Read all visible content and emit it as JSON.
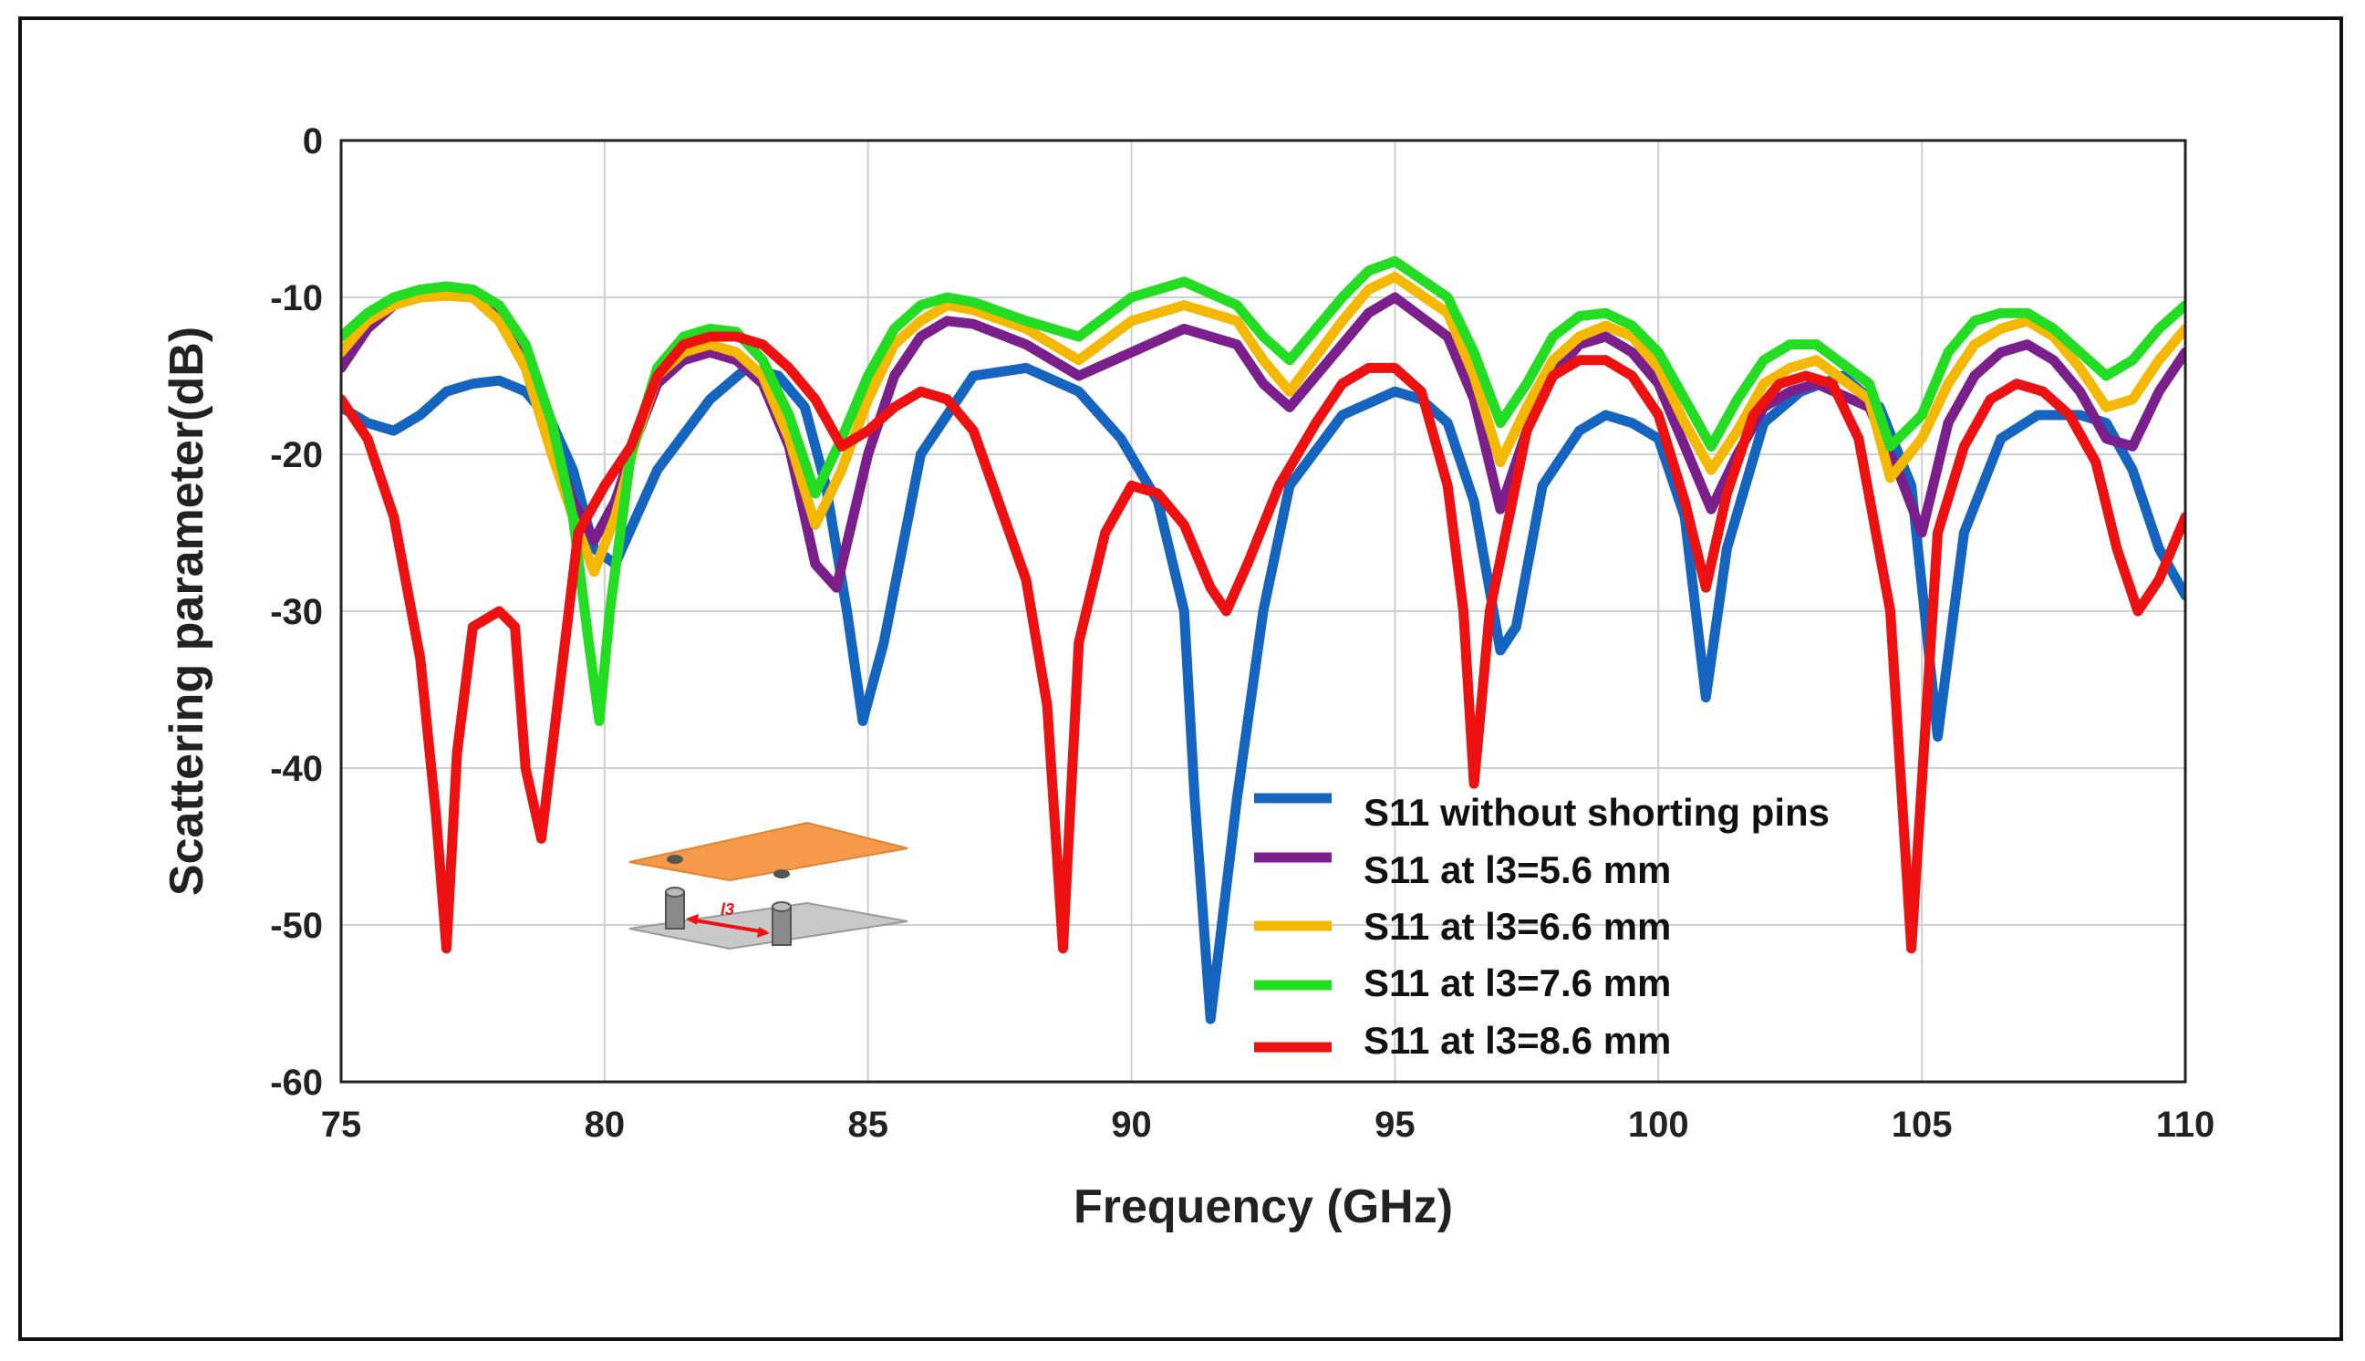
{
  "chart_data": {
    "type": "line",
    "title": "",
    "xlabel": "Frequency (GHz)",
    "ylabel": "Scattering parameter(dB)",
    "xlim": [
      75,
      110
    ],
    "ylim": [
      -60,
      0
    ],
    "xticks": [
      75,
      80,
      85,
      90,
      95,
      100,
      105,
      110
    ],
    "yticks": [
      0,
      -10,
      -20,
      -30,
      -40,
      -50,
      -60
    ],
    "xtick_labels": [
      "75",
      "80",
      "85",
      "90",
      "95",
      "100",
      "105",
      "110"
    ],
    "ytick_labels": [
      "0",
      "-10",
      "-20",
      "-30",
      "-40",
      "-50",
      "-60"
    ],
    "grid": true,
    "legend_position": "lower-right",
    "series": [
      {
        "name": "S11 without shorting pins",
        "color": "#1565c0",
        "x": [
          75,
          75.5,
          76,
          76.5,
          77,
          77.5,
          78,
          78.5,
          79,
          79.4,
          79.8,
          80.2,
          81,
          82,
          82.7,
          83.3,
          83.8,
          84.2,
          84.6,
          84.9,
          85.3,
          86,
          87,
          88,
          89,
          89.8,
          90.5,
          91,
          91.2,
          91.5,
          92,
          92.5,
          93,
          94,
          95,
          95.5,
          96,
          96.5,
          97,
          97.3,
          97.8,
          98.5,
          99,
          99.5,
          100,
          100.5,
          100.9,
          101.3,
          102,
          102.7,
          103.5,
          104.2,
          104.8,
          105.3,
          105.8,
          106.5,
          107.2,
          108,
          108.5,
          109,
          109.5,
          110
        ],
        "values": [
          -17,
          -18,
          -18.5,
          -17.5,
          -16,
          -15.5,
          -15.3,
          -16,
          -18,
          -21,
          -26,
          -27,
          -21,
          -16.5,
          -14.5,
          -15,
          -17,
          -22,
          -30,
          -37,
          -32,
          -20,
          -15,
          -14.5,
          -16,
          -19,
          -23,
          -30,
          -42,
          -56,
          -42,
          -30,
          -22,
          -17.5,
          -16,
          -16.5,
          -18,
          -23,
          -32.5,
          -31,
          -22,
          -18.5,
          -17.5,
          -18,
          -19,
          -24,
          -35.5,
          -26,
          -18,
          -16,
          -15,
          -17,
          -22,
          -38,
          -25,
          -19,
          -17.5,
          -17.5,
          -18,
          -21,
          -26,
          -29
        ]
      },
      {
        "name": "S11 at l3=5.6 mm",
        "color": "#7b1f8c",
        "x": [
          75,
          75.5,
          76,
          76.5,
          77,
          77.5,
          78,
          78.5,
          79,
          79.4,
          79.8,
          80.2,
          80.6,
          81,
          81.5,
          82,
          82.5,
          83,
          83.5,
          84,
          84.4,
          85,
          85.5,
          86,
          86.5,
          87,
          88,
          89,
          90,
          91,
          92,
          92.5,
          93,
          94,
          94.5,
          95,
          96,
          96.5,
          97,
          97.5,
          98,
          98.5,
          99,
          99.5,
          100,
          100.5,
          101,
          101.5,
          102,
          102.5,
          103,
          104,
          104.6,
          105,
          105.5,
          106,
          106.5,
          107,
          107.5,
          108,
          108.5,
          109,
          109.5,
          110
        ],
        "values": [
          -14.5,
          -12,
          -10.5,
          -9.8,
          -9.6,
          -9.8,
          -11,
          -14,
          -19,
          -23,
          -25.5,
          -23,
          -19,
          -15.5,
          -14,
          -13.5,
          -14,
          -15.5,
          -19.5,
          -27,
          -28.5,
          -20,
          -15,
          -12.5,
          -11.5,
          -11.7,
          -13,
          -15,
          -13.5,
          -12,
          -13,
          -15.5,
          -17,
          -13,
          -11,
          -10,
          -12.5,
          -16.5,
          -23.5,
          -18.5,
          -15,
          -13,
          -12.5,
          -13.5,
          -15.5,
          -19.5,
          -23.5,
          -20,
          -17,
          -16,
          -15.5,
          -17,
          -21.5,
          -25,
          -18,
          -15,
          -13.5,
          -13,
          -14,
          -16,
          -19,
          -19.5,
          -16,
          -13.5
        ]
      },
      {
        "name": "S11 at l3=6.6 mm",
        "color": "#f5b800",
        "x": [
          75,
          75.5,
          76,
          76.5,
          77,
          77.5,
          78,
          78.5,
          79,
          79.4,
          79.8,
          80.2,
          80.6,
          81,
          81.5,
          82,
          82.5,
          83,
          83.5,
          84,
          84.5,
          85,
          85.5,
          86,
          86.5,
          87,
          88,
          89,
          90,
          91,
          92,
          92.5,
          93,
          94,
          94.5,
          95,
          96,
          96.5,
          97,
          97.5,
          98,
          98.5,
          99,
          99.5,
          100,
          100.5,
          101,
          101.5,
          102,
          102.5,
          103,
          104,
          104.4,
          105,
          105.5,
          106,
          106.5,
          107,
          107.5,
          108,
          108.5,
          109,
          109.5,
          110
        ],
        "values": [
          -13.5,
          -11.5,
          -10.5,
          -10,
          -9.9,
          -10,
          -11.5,
          -14.5,
          -20,
          -24,
          -27.5,
          -24,
          -19,
          -15,
          -13.5,
          -13,
          -13.5,
          -15,
          -19,
          -24.5,
          -21,
          -16.5,
          -13,
          -11.5,
          -10.5,
          -10.8,
          -12,
          -14,
          -11.5,
          -10.5,
          -11.5,
          -14,
          -16,
          -11.5,
          -9.5,
          -8.7,
          -11,
          -15,
          -20.5,
          -17,
          -14,
          -12.5,
          -11.8,
          -12.5,
          -14.5,
          -18,
          -21,
          -18.5,
          -15.5,
          -14.5,
          -14,
          -16.5,
          -21.5,
          -19,
          -15.5,
          -13,
          -12,
          -11.5,
          -12.5,
          -14.5,
          -17,
          -16.5,
          -14,
          -12
        ]
      },
      {
        "name": "S11 at l3=7.6 mm",
        "color": "#22dd22",
        "x": [
          75,
          75.5,
          76,
          76.5,
          77,
          77.5,
          78,
          78.5,
          79,
          79.4,
          79.7,
          79.9,
          80.1,
          80.5,
          81,
          81.5,
          82,
          82.5,
          83,
          83.5,
          84,
          84.5,
          85,
          85.5,
          86,
          86.5,
          87,
          88,
          89,
          90,
          91,
          92,
          92.5,
          93,
          94,
          94.5,
          95,
          96,
          96.5,
          97,
          97.5,
          98,
          98.5,
          99,
          99.5,
          100,
          100.5,
          101,
          101.5,
          102,
          102.5,
          103,
          104,
          104.4,
          105,
          105.5,
          106,
          106.5,
          107,
          107.5,
          108,
          108.5,
          109,
          109.5,
          110
        ],
        "values": [
          -12.5,
          -11,
          -10,
          -9.5,
          -9.3,
          -9.5,
          -10.5,
          -13,
          -18,
          -24,
          -32,
          -37,
          -30,
          -20,
          -14.5,
          -12.5,
          -12,
          -12.2,
          -14,
          -17.5,
          -22.5,
          -19,
          -15,
          -12,
          -10.5,
          -10,
          -10.3,
          -11.5,
          -12.5,
          -10,
          -9,
          -10.5,
          -12.5,
          -14,
          -10,
          -8.3,
          -7.7,
          -10,
          -13.5,
          -18,
          -15.5,
          -12.5,
          -11.2,
          -11,
          -11.8,
          -13.5,
          -16.5,
          -19.5,
          -16.5,
          -14,
          -13,
          -13,
          -15.5,
          -19.5,
          -17.5,
          -13.5,
          -11.5,
          -11,
          -11,
          -12,
          -13.5,
          -15,
          -14,
          -12,
          -10.5
        ]
      },
      {
        "name": "S11 at l3=8.6 mm",
        "color": "#ee1111",
        "x": [
          75,
          75.5,
          76,
          76.5,
          76.8,
          77,
          77.2,
          77.5,
          78,
          78.3,
          78.5,
          78.8,
          79.5,
          80,
          80.5,
          81,
          81.5,
          82,
          82.5,
          83,
          83.5,
          84,
          84.5,
          85,
          85.5,
          86,
          86.5,
          87,
          88,
          88.4,
          88.7,
          89,
          89.5,
          90,
          90.5,
          91,
          91.5,
          91.8,
          92.2,
          92.8,
          93.5,
          94,
          94.5,
          95,
          95.5,
          96,
          96.3,
          96.5,
          96.8,
          97.5,
          98,
          98.5,
          99,
          99.5,
          100,
          100.5,
          100.9,
          101.3,
          101.8,
          102.3,
          102.8,
          103.3,
          103.8,
          104.4,
          104.8,
          105.3,
          105.8,
          106.3,
          106.8,
          107.3,
          107.8,
          108.3,
          108.7,
          109.1,
          109.5,
          110
        ],
        "values": [
          -16.5,
          -19,
          -24,
          -33,
          -43,
          -51.5,
          -39,
          -31,
          -30,
          -31,
          -40,
          -44.5,
          -25,
          -22,
          -19.5,
          -15,
          -13,
          -12.5,
          -12.5,
          -13,
          -14.5,
          -16.5,
          -19.5,
          -18.5,
          -17,
          -16,
          -16.5,
          -18.5,
          -28,
          -36,
          -51.5,
          -32,
          -25,
          -22,
          -22.5,
          -24.5,
          -28.5,
          -30,
          -27,
          -22,
          -18,
          -15.5,
          -14.5,
          -14.5,
          -16,
          -22,
          -30,
          -41,
          -30,
          -18.5,
          -15,
          -14,
          -14,
          -15,
          -17.5,
          -23,
          -28.5,
          -22.5,
          -17.5,
          -15.5,
          -15,
          -15.5,
          -19,
          -30,
          -51.5,
          -25,
          -19.5,
          -16.5,
          -15.5,
          -16,
          -17.5,
          -20.5,
          -26,
          -30,
          -28,
          -24
        ]
      }
    ],
    "inset": {
      "description_label": "l3",
      "label_color": "#ee1111"
    }
  }
}
